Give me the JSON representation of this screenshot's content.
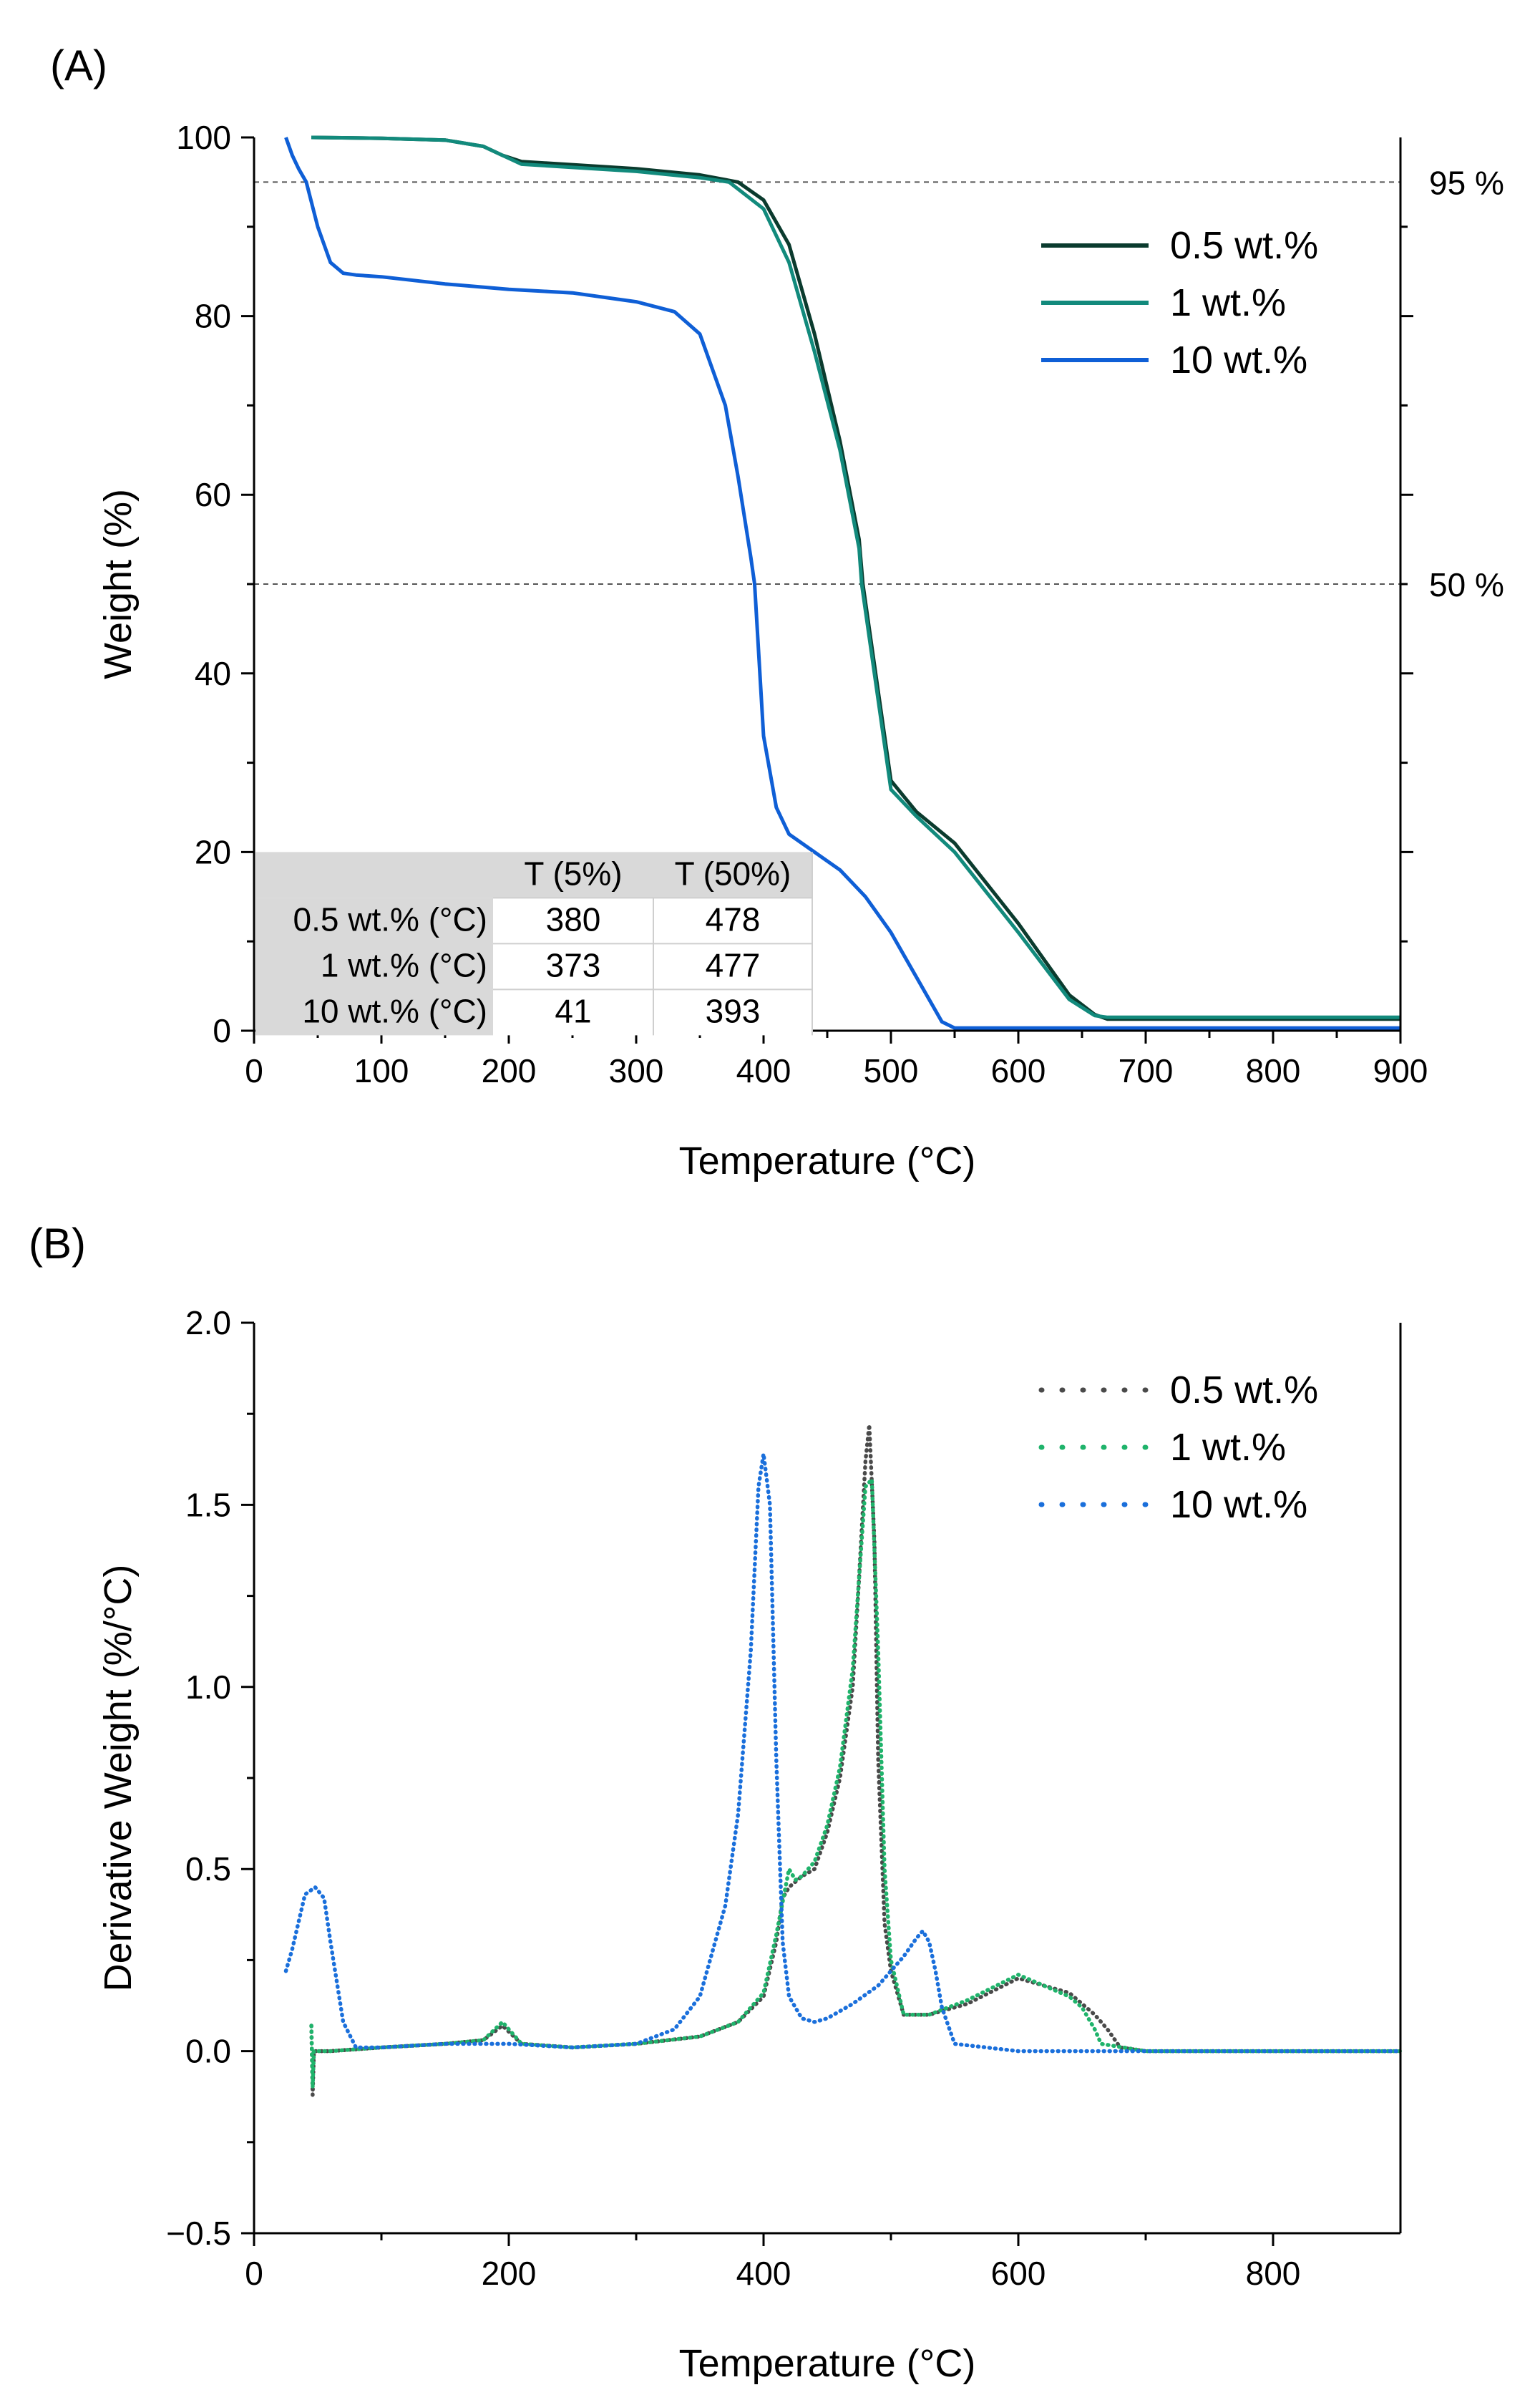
{
  "chart_data": [
    {
      "panel_label": "(A)",
      "type": "line",
      "xlabel": "Temperature (°C)",
      "ylabel": "Weight (%)",
      "xlim": [
        0,
        900
      ],
      "ylim": [
        0,
        100
      ],
      "xticks": [
        0,
        100,
        200,
        300,
        400,
        500,
        600,
        700,
        800,
        900
      ],
      "yticks": [
        0,
        20,
        40,
        60,
        80,
        100
      ],
      "right_axis_ticks": [
        20,
        40,
        60,
        80
      ],
      "reference_lines": [
        {
          "y": 95,
          "label": "95 %"
        },
        {
          "y": 50,
          "label": "50 %"
        }
      ],
      "legend_position": "top-right",
      "series": [
        {
          "name": "0.5 wt.%",
          "color": "#0b3b2e",
          "x": [
            45,
            100,
            150,
            180,
            195,
            210,
            300,
            350,
            380,
            400,
            420,
            440,
            460,
            475,
            478,
            490,
            500,
            520,
            550,
            600,
            640,
            660,
            670,
            700,
            900
          ],
          "y": [
            100,
            99.9,
            99.7,
            99.0,
            98.0,
            97.3,
            96.5,
            95.8,
            95.0,
            93.0,
            88.0,
            78.0,
            66.0,
            55.0,
            50.0,
            38.0,
            28.0,
            24.5,
            21.0,
            12.0,
            4.0,
            1.8,
            1.3,
            1.3,
            1.3
          ]
        },
        {
          "name": "1 wt.%",
          "color": "#128a7c",
          "x": [
            45,
            100,
            150,
            180,
            195,
            210,
            300,
            350,
            373,
            400,
            420,
            440,
            460,
            475,
            477,
            490,
            500,
            520,
            550,
            600,
            640,
            660,
            670,
            700,
            900
          ],
          "y": [
            100,
            99.9,
            99.7,
            99.0,
            98.0,
            97.0,
            96.2,
            95.5,
            95.0,
            92.0,
            86.0,
            76.0,
            65.0,
            54.0,
            50.0,
            37.0,
            27.0,
            24.0,
            20.0,
            11.0,
            3.5,
            1.7,
            1.5,
            1.5,
            1.5
          ]
        },
        {
          "name": "10 wt.%",
          "color": "#0f5fd6",
          "x": [
            25,
            30,
            35,
            41,
            50,
            60,
            70,
            80,
            100,
            150,
            200,
            250,
            300,
            330,
            350,
            370,
            380,
            390,
            393,
            400,
            410,
            420,
            440,
            460,
            480,
            500,
            520,
            540,
            550,
            600,
            900
          ],
          "y": [
            100,
            98,
            96.5,
            95,
            90,
            86,
            84.8,
            84.6,
            84.4,
            83.6,
            83.0,
            82.6,
            81.6,
            80.5,
            78.0,
            70.0,
            62.0,
            53.0,
            50.0,
            33.0,
            25.0,
            22.0,
            20.0,
            18.0,
            15.0,
            11.0,
            6.0,
            1.0,
            0.3,
            0.3,
            0.3
          ]
        }
      ],
      "table": {
        "columns": [
          "",
          "T (5%)",
          "T (50%)"
        ],
        "rows": [
          [
            "0.5 wt.% (°C)",
            "380",
            "478"
          ],
          [
            "1 wt.% (°C)",
            "373",
            "477"
          ],
          [
            "10 wt.% (°C)",
            "41",
            "393"
          ]
        ]
      }
    },
    {
      "panel_label": "(B)",
      "type": "scatter",
      "xlabel": "Temperature (°C)",
      "ylabel": "Derivative Weight (%/°C)",
      "xlim": [
        0,
        900
      ],
      "ylim": [
        -0.5,
        2.0
      ],
      "xticks": [
        0,
        200,
        400,
        600,
        800
      ],
      "yticks": [
        -0.5,
        0.0,
        0.5,
        1.0,
        1.5,
        2.0
      ],
      "ytick_labels": [
        "−0.5",
        "0.0",
        "0.5",
        "1.0",
        "1.5",
        "2.0"
      ],
      "legend_position": "top-right",
      "series": [
        {
          "name": "0.5 wt.%",
          "color": "#4a4a4a",
          "x": [
            45,
            46,
            47,
            48,
            50,
            60,
            100,
            150,
            180,
            195,
            210,
            250,
            300,
            350,
            380,
            400,
            410,
            415,
            420,
            430,
            440,
            450,
            460,
            470,
            475,
            480,
            483,
            487,
            490,
            495,
            500,
            510,
            530,
            560,
            600,
            640,
            660,
            670,
            680,
            700,
            900
          ],
          "y": [
            0.07,
            -0.12,
            0.0,
            0.0,
            0.0,
            0.0,
            0.01,
            0.02,
            0.03,
            0.07,
            0.02,
            0.01,
            0.02,
            0.04,
            0.08,
            0.15,
            0.3,
            0.42,
            0.45,
            0.48,
            0.5,
            0.6,
            0.75,
            1.0,
            1.3,
            1.62,
            1.72,
            1.4,
            0.8,
            0.35,
            0.22,
            0.1,
            0.1,
            0.13,
            0.2,
            0.16,
            0.1,
            0.06,
            0.01,
            0.0,
            0.0
          ]
        },
        {
          "name": "1 wt.%",
          "color": "#1fb36b",
          "x": [
            45,
            46,
            47,
            48,
            50,
            60,
            100,
            150,
            180,
            195,
            210,
            250,
            300,
            350,
            380,
            400,
            410,
            420,
            425,
            430,
            440,
            450,
            460,
            470,
            475,
            480,
            485,
            490,
            495,
            500,
            510,
            530,
            560,
            600,
            640,
            650,
            660,
            665,
            700,
            900
          ],
          "y": [
            0.07,
            -0.1,
            0.0,
            0.0,
            0.0,
            0.0,
            0.01,
            0.02,
            0.03,
            0.08,
            0.02,
            0.01,
            0.02,
            0.04,
            0.08,
            0.16,
            0.32,
            0.5,
            0.47,
            0.48,
            0.52,
            0.62,
            0.78,
            1.05,
            1.3,
            1.55,
            1.57,
            1.1,
            0.5,
            0.25,
            0.1,
            0.1,
            0.14,
            0.21,
            0.15,
            0.12,
            0.06,
            0.02,
            0.0,
            0.0
          ]
        },
        {
          "name": "10 wt.%",
          "color": "#1a6fdb",
          "x": [
            25,
            30,
            40,
            48,
            55,
            60,
            70,
            80,
            100,
            150,
            200,
            250,
            300,
            330,
            350,
            370,
            380,
            390,
            396,
            400,
            405,
            410,
            415,
            420,
            430,
            440,
            450,
            470,
            490,
            500,
            510,
            520,
            525,
            530,
            535,
            540,
            550,
            600,
            700,
            900
          ],
          "y": [
            0.22,
            0.28,
            0.43,
            0.45,
            0.42,
            0.3,
            0.08,
            0.01,
            0.01,
            0.02,
            0.02,
            0.01,
            0.02,
            0.06,
            0.15,
            0.4,
            0.65,
            1.1,
            1.55,
            1.64,
            1.5,
            0.8,
            0.3,
            0.15,
            0.09,
            0.08,
            0.09,
            0.13,
            0.18,
            0.22,
            0.26,
            0.31,
            0.33,
            0.3,
            0.22,
            0.12,
            0.02,
            0.0,
            0.0,
            0.0
          ]
        }
      ]
    }
  ]
}
